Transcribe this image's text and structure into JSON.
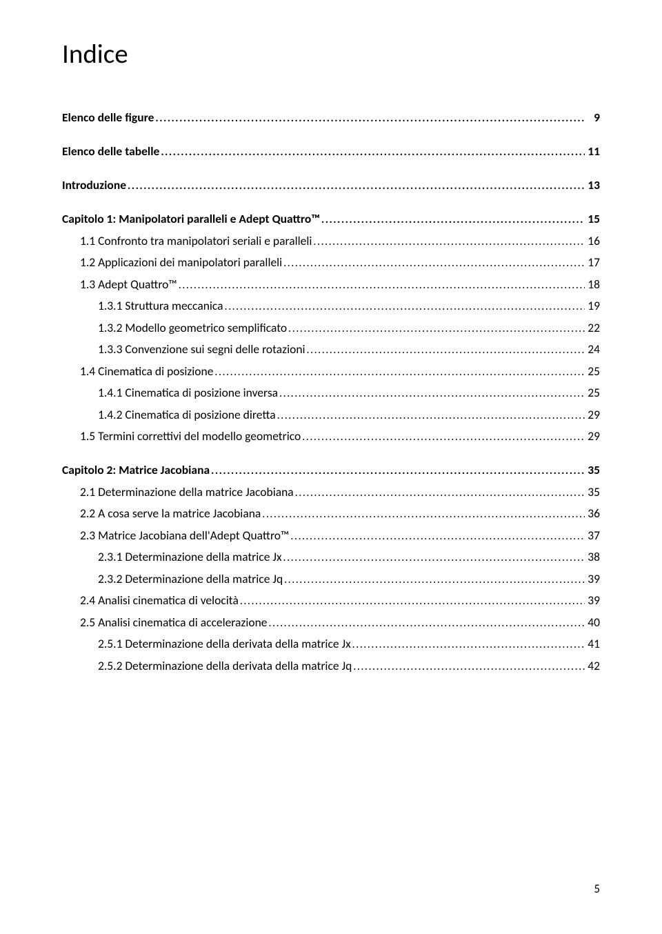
{
  "title": "Indice",
  "page_number": "5",
  "entries": [
    {
      "label": "Elenco delle figure",
      "page": "9",
      "bold": true,
      "indent": 0,
      "gap": false
    },
    {
      "label": "Elenco delle tabelle",
      "page": "11",
      "bold": true,
      "indent": 0,
      "gap": true
    },
    {
      "label": "Introduzione",
      "page": "13",
      "bold": true,
      "indent": 0,
      "gap": true
    },
    {
      "label": "Capitolo 1: Manipolatori paralleli e Adept Quattro™",
      "page": "15",
      "bold": true,
      "indent": 0,
      "gap": true
    },
    {
      "label": "1.1 Confronto tra manipolatori seriali e paralleli",
      "page": "16",
      "bold": false,
      "indent": 1,
      "gap": false
    },
    {
      "label": "1.2 Applicazioni dei manipolatori paralleli",
      "page": "17",
      "bold": false,
      "indent": 1,
      "gap": false
    },
    {
      "label": "1.3 Adept Quattro™",
      "page": "18",
      "bold": false,
      "indent": 1,
      "gap": false
    },
    {
      "label": "1.3.1 Struttura meccanica",
      "page": "19",
      "bold": false,
      "indent": 2,
      "gap": false
    },
    {
      "label": "1.3.2 Modello geometrico semplificato",
      "page": "22",
      "bold": false,
      "indent": 2,
      "gap": false
    },
    {
      "label": "1.3.3 Convenzione sui segni delle rotazioni",
      "page": "24",
      "bold": false,
      "indent": 2,
      "gap": false
    },
    {
      "label": "1.4 Cinematica di posizione",
      "page": "25",
      "bold": false,
      "indent": 1,
      "gap": false
    },
    {
      "label": "1.4.1 Cinematica di posizione inversa",
      "page": "25",
      "bold": false,
      "indent": 2,
      "gap": false
    },
    {
      "label": "1.4.2 Cinematica di posizione diretta",
      "page": "29",
      "bold": false,
      "indent": 2,
      "gap": false
    },
    {
      "label": "1.5 Termini correttivi del modello geometrico",
      "page": "29",
      "bold": false,
      "indent": 1,
      "gap": false
    },
    {
      "label": "Capitolo 2: Matrice Jacobiana",
      "page": "35",
      "bold": true,
      "indent": 0,
      "gap": true
    },
    {
      "label": "2.1 Determinazione della matrice Jacobiana",
      "page": "35",
      "bold": false,
      "indent": 1,
      "gap": false
    },
    {
      "label": "2.2 A cosa serve la matrice Jacobiana",
      "page": "36",
      "bold": false,
      "indent": 1,
      "gap": false
    },
    {
      "label": "2.3 Matrice Jacobiana dell'Adept Quattro™",
      "page": "37",
      "bold": false,
      "indent": 1,
      "gap": false
    },
    {
      "label": "2.3.1 Determinazione della matrice Jx",
      "page": "38",
      "bold": false,
      "indent": 2,
      "gap": false
    },
    {
      "label": "2.3.2 Determinazione della matrice Jq",
      "page": "39",
      "bold": false,
      "indent": 2,
      "gap": false
    },
    {
      "label": "2.4 Analisi cinematica di velocità",
      "page": "39",
      "bold": false,
      "indent": 1,
      "gap": false
    },
    {
      "label": "2.5 Analisi cinematica di accelerazione",
      "page": "40",
      "bold": false,
      "indent": 1,
      "gap": false
    },
    {
      "label": "2.5.1 Determinazione della derivata della matrice Jx",
      "page": "41",
      "bold": false,
      "indent": 2,
      "gap": false
    },
    {
      "label": "2.5.2 Determinazione della derivata della matrice Jq",
      "page": "42",
      "bold": false,
      "indent": 2,
      "gap": false
    }
  ]
}
